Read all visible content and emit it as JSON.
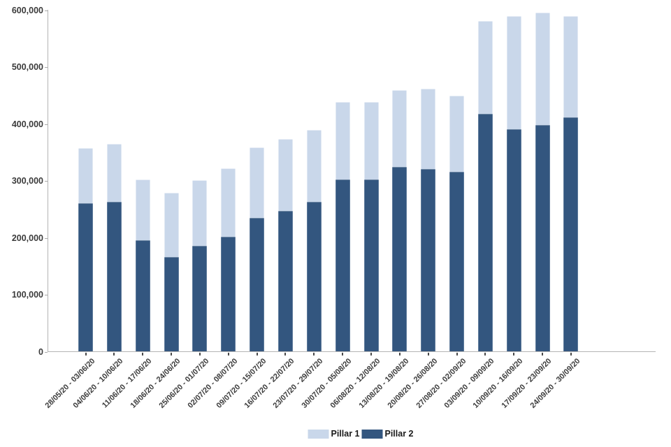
{
  "chart_data": {
    "type": "bar",
    "stacked": true,
    "title": "",
    "xlabel": "",
    "ylabel": "",
    "categories": [
      "28/05/20 - 03/06/20",
      "04/06/20 - 10/06/20",
      "11/06/20 - 17/06/20",
      "18/06/20 - 24/06/20",
      "25/06/20 - 01/07/20",
      "02/07/20 - 08/07/20",
      "09/07/20 - 15/07/20",
      "16/07/20 - 22/07/20",
      "23/07/20 - 29/07/20",
      "30/07/20 - 05/08/20",
      "06/08/20 - 12/08/20",
      "13/08/20 - 19/08/20",
      "20/08/20 - 26/08/20",
      "27/08/20 - 02/09/20",
      "03/09/20 - 09/09/20",
      "10/09/20 - 16/09/20",
      "17/09/20 - 23/09/20",
      "24/09/20 - 30/09/20"
    ],
    "series": [
      {
        "name": "Pillar 1",
        "color": "#c9d7ea",
        "values": [
          97000,
          103000,
          107000,
          112000,
          115000,
          121000,
          124000,
          126000,
          127000,
          136000,
          136000,
          135000,
          142000,
          134000,
          163000,
          199000,
          197000,
          178000
        ]
      },
      {
        "name": "Pillar 2",
        "color": "#33567f",
        "values": [
          261000,
          263000,
          196000,
          167000,
          186000,
          202000,
          235000,
          248000,
          263000,
          303000,
          303000,
          325000,
          321000,
          316000,
          418000,
          391000,
          399000,
          412000
        ]
      }
    ],
    "stack_order_bottom_to_top": [
      "Pillar 2",
      "Pillar 1"
    ],
    "totals": [
      358000,
      366000,
      303000,
      279000,
      301000,
      323000,
      359000,
      374000,
      390000,
      439000,
      439000,
      460000,
      463000,
      450000,
      581000,
      590000,
      596000,
      590000
    ],
    "ylim": [
      0,
      600000
    ],
    "ytick_step": 100000,
    "yticks": [
      "0",
      "100,000",
      "200,000",
      "300,000",
      "400,000",
      "500,000",
      "600,000"
    ],
    "grid": false,
    "legend_position": "bottom-center"
  }
}
